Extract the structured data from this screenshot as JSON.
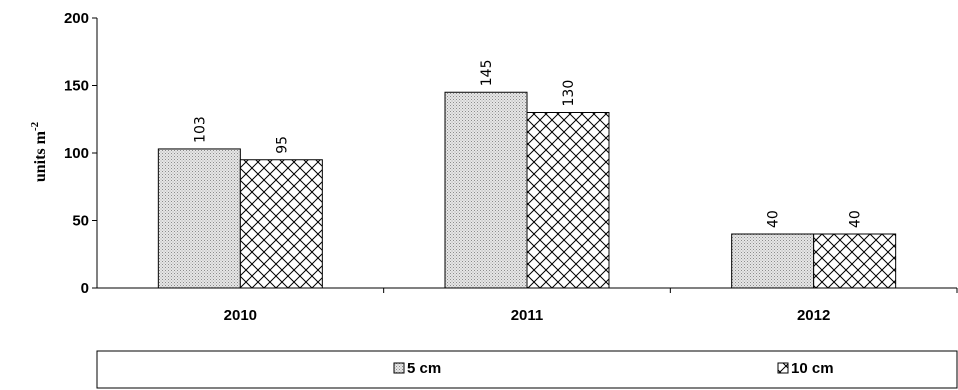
{
  "chart_data": {
    "type": "bar",
    "categories": [
      "2010",
      "2011",
      "2012"
    ],
    "series": [
      {
        "name": "5 cm",
        "values": [
          103,
          145,
          40
        ],
        "labels": [
          "103",
          "145",
          "40"
        ],
        "fill": "#d4d4d4"
      },
      {
        "name": "10 cm",
        "values": [
          95,
          130,
          40
        ],
        "labels": [
          "95",
          "130",
          "40"
        ],
        "fill": "crosshatch"
      }
    ],
    "ylabel": "units m",
    "ylabel_superscript": "-2",
    "ylim": [
      0,
      200
    ],
    "yticks": [
      0,
      50,
      100,
      150,
      200
    ],
    "ytick_labels": [
      "0",
      "50",
      "100",
      "150",
      "200"
    ],
    "grid": false,
    "legend_position": "bottom"
  }
}
